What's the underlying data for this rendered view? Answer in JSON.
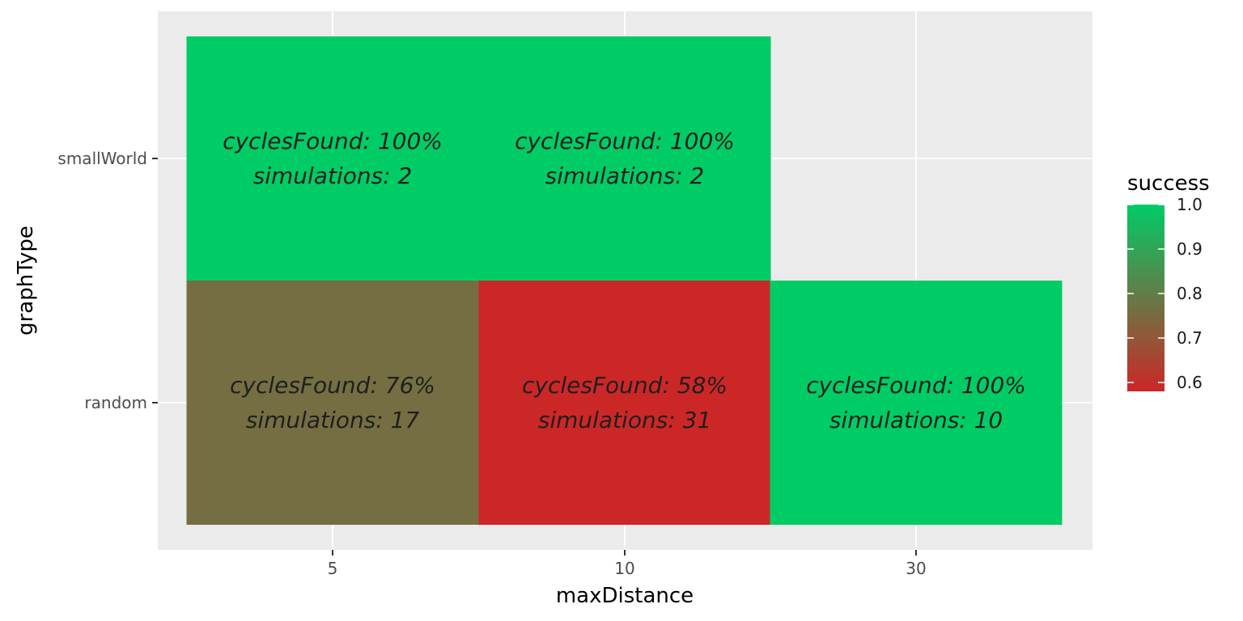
{
  "chart_data": {
    "type": "heatmap",
    "xlabel": "maxDistance",
    "ylabel": "graphType",
    "x_categories": [
      "5",
      "10",
      "30"
    ],
    "y_categories": [
      "random",
      "smallWorld"
    ],
    "cells": [
      {
        "x": "5",
        "y": "smallWorld",
        "success": 1.0,
        "lines": [
          "cyclesFound:  100%",
          "simulations:  2"
        ]
      },
      {
        "x": "10",
        "y": "smallWorld",
        "success": 1.0,
        "lines": [
          "cyclesFound:  100%",
          "simulations:  2"
        ]
      },
      {
        "x": "5",
        "y": "random",
        "success": 0.76,
        "lines": [
          "cyclesFound:  76%",
          "simulations:  17"
        ]
      },
      {
        "x": "10",
        "y": "random",
        "success": 0.58,
        "lines": [
          "cyclesFound:  58%",
          "simulations:  31"
        ]
      },
      {
        "x": "30",
        "y": "random",
        "success": 1.0,
        "lines": [
          "cyclesFound:  100%",
          "simulations:  10"
        ]
      }
    ],
    "legend": {
      "title": "success",
      "ticks": [
        1.0,
        0.9,
        0.8,
        0.7,
        0.6
      ],
      "tick_labels": [
        "1.0",
        "0.9",
        "0.8",
        "0.7",
        "0.6"
      ],
      "range": [
        0.58,
        1.0
      ],
      "color_low": "#cc2727",
      "color_high": "#00cc66"
    },
    "grid": true,
    "panel_background": "#ebebeb"
  }
}
